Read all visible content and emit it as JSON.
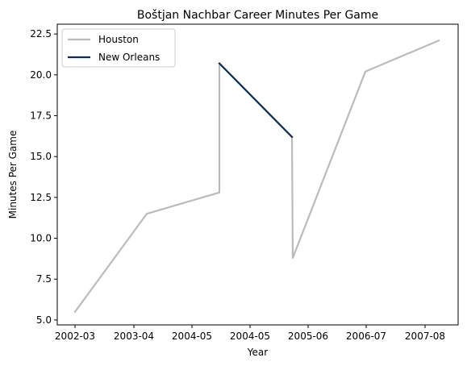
{
  "chart_data": {
    "type": "line",
    "title": "Boštjan Nachbar Career Minutes Per Game",
    "xlabel": "Year",
    "ylabel": "Minutes Per Game",
    "x_ticks": [
      "2002-03",
      "2003-04",
      "2004-05",
      "2004-05",
      "2005-06",
      "2006-07",
      "2007-08"
    ],
    "ylim": [
      4.7,
      23.1
    ],
    "y_ticks": [
      "5.0",
      "7.5",
      "10.0",
      "12.5",
      "15.0",
      "17.5",
      "20.0",
      "22.5"
    ],
    "grid": false,
    "legend_position": "top-left",
    "series": [
      {
        "name": "Houston",
        "color": "#bbbbbb",
        "points": [
          {
            "x": "2002-03",
            "y": 5.5
          },
          {
            "x": "2003-04",
            "y": 11.5
          },
          {
            "x": "2004-05",
            "y": 12.8
          },
          {
            "x": "2004-05",
            "y": 20.7
          },
          {
            "x": "2005-06",
            "y": 16.2
          },
          {
            "x": "2005-06",
            "y": 8.8
          },
          {
            "x": "2006-07",
            "y": 20.2
          },
          {
            "x": "2007-08",
            "y": 22.1
          }
        ]
      },
      {
        "name": "New Orleans",
        "color": "#0c2c56",
        "points": [
          {
            "x": "2004-05",
            "y": 20.7
          },
          {
            "x": "2005-06",
            "y": 16.2
          }
        ]
      }
    ]
  }
}
